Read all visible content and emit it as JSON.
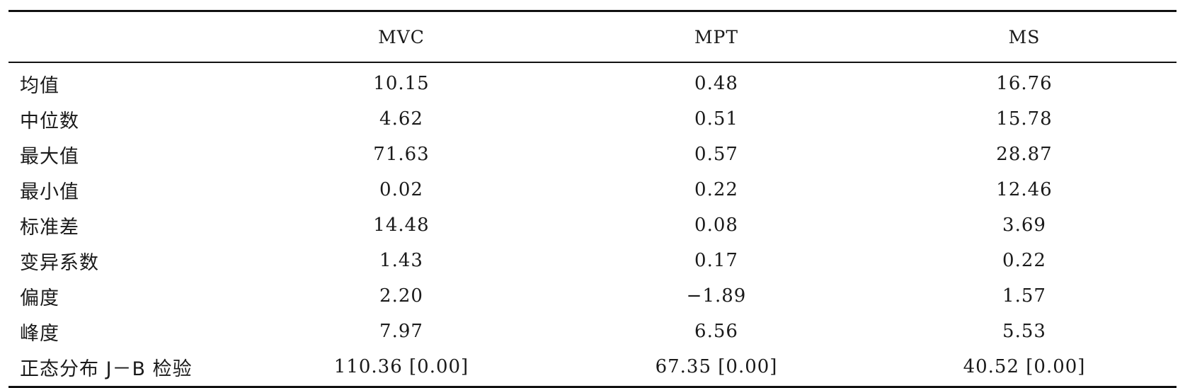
{
  "table": {
    "columns": [
      "",
      "MVC",
      "MPT",
      "MS"
    ],
    "rows": [
      {
        "label": "均值",
        "values": [
          "10.15",
          "0.48",
          "16.76"
        ]
      },
      {
        "label": "中位数",
        "values": [
          "4.62",
          "0.51",
          "15.78"
        ]
      },
      {
        "label": "最大值",
        "values": [
          "71.63",
          "0.57",
          "28.87"
        ]
      },
      {
        "label": "最小值",
        "values": [
          "0.02",
          "0.22",
          "12.46"
        ]
      },
      {
        "label": "标准差",
        "values": [
          "14.48",
          "0.08",
          "3.69"
        ]
      },
      {
        "label": "变异系数",
        "values": [
          "1.43",
          "0.17",
          "0.22"
        ]
      },
      {
        "label": "偏度",
        "values": [
          "2.20",
          "−1.89",
          "1.57"
        ]
      },
      {
        "label": "峰度",
        "values": [
          "7.97",
          "6.56",
          "5.53"
        ]
      },
      {
        "label": "正态分布 J－B 检验",
        "values": [
          "110.36 [0.00]",
          "67.35 [0.00]",
          "40.52 [0.00]"
        ]
      }
    ]
  }
}
